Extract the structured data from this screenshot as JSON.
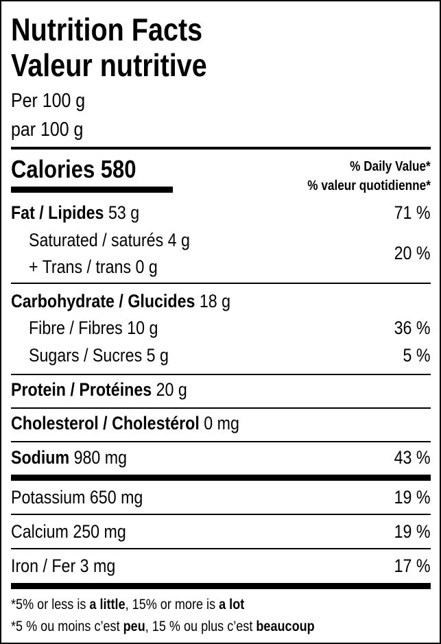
{
  "title_en": "Nutrition Facts",
  "title_fr": "Valeur nutritive",
  "serving_en": "Per 100 g",
  "serving_fr": "par 100 g",
  "calories": {
    "label": "Calories",
    "value": "580"
  },
  "dv_header_en": "% Daily Value*",
  "dv_header_fr": "% valeur quotidienne*",
  "rows": [
    {
      "label": "Fat / Lipides",
      "amount": "53 g",
      "dv": "71 %"
    },
    {
      "label": "Saturated / saturés",
      "amount": "4 g"
    },
    {
      "label": "+ Trans / trans",
      "amount": "0 g",
      "dv": "20 %"
    },
    {
      "label": "Carbohydrate / Glucides",
      "amount": "18 g"
    },
    {
      "label": "Fibre / Fibres",
      "amount": "10 g",
      "dv": "36 %"
    },
    {
      "label": "Sugars / Sucres",
      "amount": "5 g",
      "dv": "5 %"
    },
    {
      "label": "Protein / Protéines",
      "amount": "20 g"
    },
    {
      "label": "Cholesterol / Cholestérol",
      "amount": "0 mg"
    },
    {
      "label": "Sodium",
      "amount": "980 mg",
      "dv": "43 %"
    },
    {
      "label": "Potassium",
      "amount": "650 mg",
      "dv": "19 %"
    },
    {
      "label": "Calcium",
      "amount": "250 mg",
      "dv": "19 %"
    },
    {
      "label": "Iron / Fer",
      "amount": "3 mg",
      "dv": "17 %"
    }
  ],
  "footnote_en": {
    "a": "*5% or less is ",
    "b": "a little",
    "c": ", 15% or more is ",
    "d": "a lot"
  },
  "footnote_fr": {
    "a": "*5 % ou moins c’est ",
    "b": "peu",
    "c": ", 15 % ou plus c’est ",
    "d": "beaucoup"
  }
}
